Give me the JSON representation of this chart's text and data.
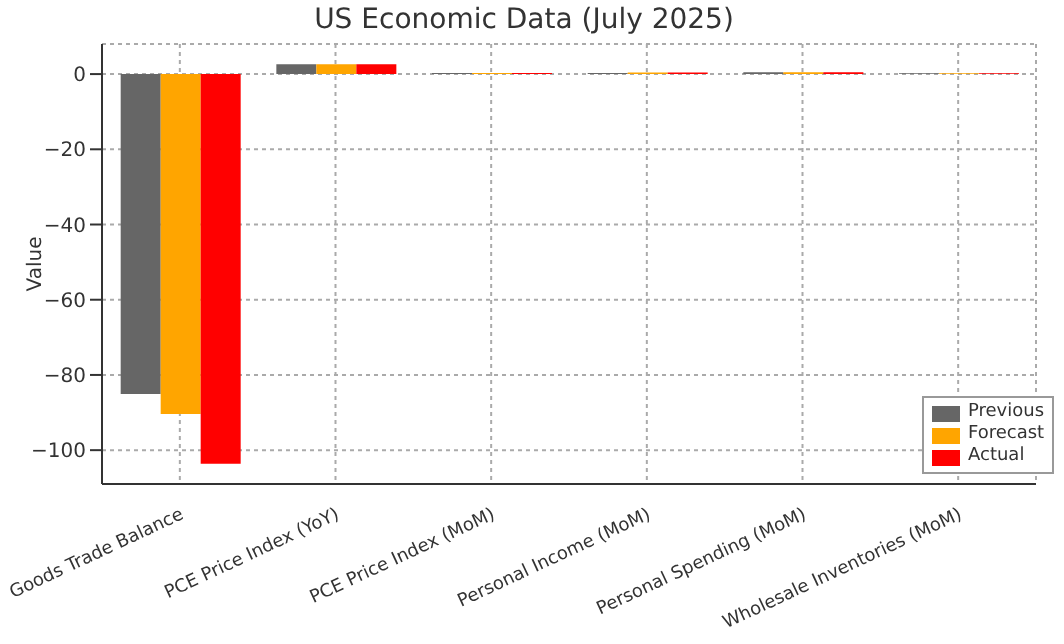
{
  "chart_data": {
    "type": "bar",
    "title": "US Economic Data (July 2025)",
    "ylabel": "Value",
    "categories": [
      "Goods Trade Balance",
      "PCE Price Index (YoY)",
      "PCE Price Index (MoM)",
      "Personal Income (MoM)",
      "Personal Spending (MoM)",
      "Wholesale Inventories (MoM)"
    ],
    "series": [
      {
        "name": "Previous",
        "color": "#666666",
        "values": [
          -85.1,
          2.6,
          0.3,
          0.3,
          0.5,
          0.2
        ]
      },
      {
        "name": "Forecast",
        "color": "#ffa500",
        "values": [
          -90.4,
          2.6,
          0.3,
          0.4,
          0.5,
          0.2
        ]
      },
      {
        "name": "Actual",
        "color": "#ff0000",
        "values": [
          -103.6,
          2.6,
          0.3,
          0.4,
          0.5,
          0.2
        ]
      }
    ],
    "ylim": [
      -109,
      8
    ],
    "yticks": [
      -100,
      -80,
      -60,
      -40,
      -20,
      0
    ],
    "grid": true,
    "legend": "bottom right"
  }
}
